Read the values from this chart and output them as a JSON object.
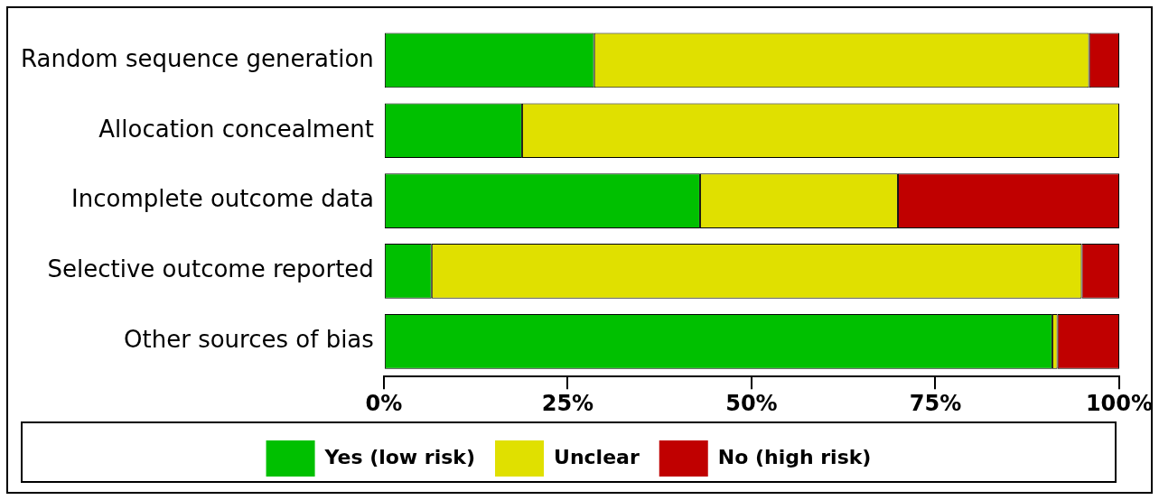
{
  "chart_data": {
    "type": "bar",
    "orientation": "horizontal",
    "stacked": true,
    "categories": [
      "Random sequence generation",
      "Allocation concealment",
      "Incomplete outcome data",
      "Selective outcome reported",
      "Other sources of bias"
    ],
    "series": [
      {
        "name": "Yes (low risk)",
        "color": "#00c000",
        "values": [
          28.6,
          18.8,
          43.0,
          6.5,
          90.9
        ]
      },
      {
        "name": "Unclear",
        "color": "#e0e000",
        "values": [
          67.3,
          81.2,
          26.9,
          88.4,
          0.7
        ]
      },
      {
        "name": "No (high risk)",
        "color": "#c00000",
        "values": [
          4.1,
          0,
          30.1,
          5.1,
          8.4
        ]
      }
    ],
    "xlim": [
      0,
      100
    ],
    "xticks": [
      {
        "value": 0,
        "label": "0%"
      },
      {
        "value": 25,
        "label": "25%"
      },
      {
        "value": 50,
        "label": "50%"
      },
      {
        "value": 75,
        "label": "75%"
      },
      {
        "value": 100,
        "label": "100%"
      }
    ],
    "grid": false,
    "legend": "bottom"
  }
}
